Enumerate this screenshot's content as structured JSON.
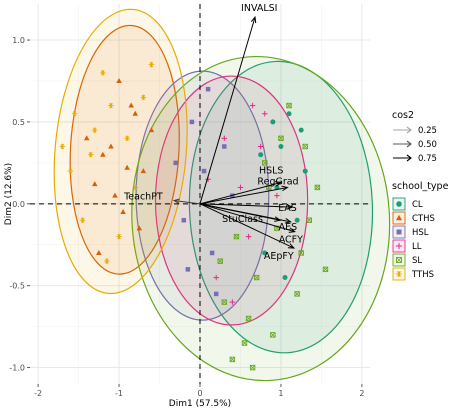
{
  "chart_data": {
    "type": "scatter",
    "subtype": "PCA biplot",
    "xlabel": "Dim1 (57.5%)",
    "ylabel": "Dim2 (12.6%)",
    "xlim": [
      -2.1,
      2.1
    ],
    "ylim": [
      -1.1,
      1.22
    ],
    "x_ticks": [
      -2,
      -1,
      0,
      1,
      2
    ],
    "y_ticks": [
      -1.0,
      -0.5,
      0.0,
      0.5,
      1.0
    ],
    "grid": true,
    "legend_position": "right",
    "cos2_legend": {
      "title": "cos2",
      "levels": [
        {
          "label": "0.25",
          "color": "#a6a6a6"
        },
        {
          "label": "0.50",
          "color": "#575757"
        },
        {
          "label": "0.75",
          "color": "#000000"
        }
      ]
    },
    "school_type_legend": {
      "title": "school_type",
      "items": [
        {
          "label": "CL",
          "color": "#1b9e77",
          "marker": "circle"
        },
        {
          "label": "CTHS",
          "color": "#d95f02",
          "marker": "triangle"
        },
        {
          "label": "HSL",
          "color": "#7570b3",
          "marker": "square"
        },
        {
          "label": "LL",
          "color": "#e7298a",
          "marker": "plus"
        },
        {
          "label": "SL",
          "color": "#66a61e",
          "marker": "boxcross"
        },
        {
          "label": "TTHS",
          "color": "#e6ab02",
          "marker": "asterisk"
        }
      ]
    },
    "ellipses": [
      {
        "group": "CL",
        "color": "#1b9e77",
        "cx": 1.0,
        "cy": -0.02,
        "rx": 1.13,
        "ry": 0.89,
        "angle": -2
      },
      {
        "group": "CTHS",
        "color": "#d95f02",
        "cx": -0.93,
        "cy": 0.33,
        "rx": 0.67,
        "ry": 0.76,
        "angle": 3
      },
      {
        "group": "HSL",
        "color": "#7570b3",
        "cx": 0.03,
        "cy": 0.05,
        "rx": 0.82,
        "ry": 0.76,
        "angle": 0
      },
      {
        "group": "LL",
        "color": "#e7298a",
        "cx": 0.39,
        "cy": 0.02,
        "rx": 0.94,
        "ry": 0.76,
        "angle": 0
      },
      {
        "group": "SL",
        "color": "#66a61e",
        "cx": 0.75,
        "cy": -0.09,
        "rx": 1.59,
        "ry": 0.99,
        "angle": -4
      },
      {
        "group": "TTHS",
        "color": "#e6ab02",
        "cx": -0.98,
        "cy": 0.32,
        "rx": 0.81,
        "ry": 0.87,
        "angle": 5
      }
    ],
    "variables": [
      {
        "name": "INVALSI",
        "x": 0.68,
        "y": 1.14,
        "cos2": 0.75
      },
      {
        "name": "HSLS",
        "x": 1.0,
        "y": 0.13,
        "cos2": 0.75
      },
      {
        "name": "RegGrad",
        "x": 1.08,
        "y": 0.1,
        "cos2": 0.75
      },
      {
        "name": "EAS",
        "x": 1.14,
        "y": -0.02,
        "cos2": 0.75
      },
      {
        "name": "StuClass",
        "x": 0.99,
        "y": -0.1,
        "cos2": 0.75
      },
      {
        "name": "AES",
        "x": 1.12,
        "y": -0.11,
        "cos2": 0.75
      },
      {
        "name": "ACFY",
        "x": 1.17,
        "y": -0.17,
        "cos2": 0.75
      },
      {
        "name": "AEpFY",
        "x": 1.16,
        "y": -0.27,
        "cos2": 0.75
      },
      {
        "name": "TeachPT",
        "x": -0.32,
        "y": 0.02,
        "cos2": 0.5
      }
    ],
    "points": {
      "CL": [
        [
          1.1,
          0.55
        ],
        [
          1.0,
          0.35
        ],
        [
          0.95,
          0.1
        ],
        [
          1.2,
          -0.1
        ],
        [
          0.8,
          -0.3
        ],
        [
          1.3,
          0.2
        ],
        [
          0.9,
          0.5
        ],
        [
          1.05,
          -0.45
        ],
        [
          0.75,
          0.3
        ],
        [
          1.25,
          0.45
        ]
      ],
      "CTHS": [
        [
          -0.9,
          0.22
        ],
        [
          -1.1,
          0.35
        ],
        [
          -1.3,
          0.12
        ],
        [
          -0.8,
          0.55
        ],
        [
          -0.95,
          -0.05
        ],
        [
          -1.2,
          0.3
        ],
        [
          -0.7,
          0.2
        ],
        [
          -1.05,
          0.05
        ],
        [
          -0.85,
          0.6
        ],
        [
          -1.4,
          0.4
        ],
        [
          -0.6,
          0.45
        ],
        [
          -1.25,
          -0.3
        ],
        [
          -0.75,
          -0.15
        ],
        [
          -1.0,
          0.75
        ]
      ],
      "HSL": [
        [
          0.05,
          0.2
        ],
        [
          -0.2,
          -0.1
        ],
        [
          0.3,
          0.35
        ],
        [
          0.15,
          -0.3
        ],
        [
          -0.1,
          0.5
        ],
        [
          0.4,
          0.05
        ],
        [
          -0.3,
          0.25
        ],
        [
          0.2,
          -0.55
        ],
        [
          0.1,
          0.7
        ],
        [
          -0.15,
          -0.4
        ]
      ],
      "LL": [
        [
          0.8,
          0.55
        ],
        [
          0.3,
          0.4
        ],
        [
          0.6,
          -0.2
        ],
        [
          0.5,
          0.1
        ],
        [
          0.95,
          0.05
        ],
        [
          0.2,
          -0.45
        ],
        [
          0.75,
          0.35
        ],
        [
          0.4,
          -0.6
        ],
        [
          0.65,
          0.6
        ],
        [
          0.1,
          0.15
        ]
      ],
      "SL": [
        [
          0.9,
          -0.8
        ],
        [
          1.2,
          -0.55
        ],
        [
          0.6,
          -0.7
        ],
        [
          1.3,
          0.35
        ],
        [
          0.4,
          -0.95
        ],
        [
          1.55,
          -0.4
        ],
        [
          0.7,
          -0.45
        ],
        [
          1.1,
          0.6
        ],
        [
          0.95,
          -0.15
        ],
        [
          0.3,
          -0.6
        ],
        [
          1.45,
          0.1
        ],
        [
          0.8,
          0.25
        ],
        [
          0.55,
          -0.85
        ],
        [
          1.25,
          -0.3
        ],
        [
          0.25,
          -0.35
        ],
        [
          1.0,
          0.4
        ],
        [
          0.45,
          -0.2
        ],
        [
          1.35,
          -0.1
        ],
        [
          0.65,
          -1.0
        ],
        [
          0.85,
          0.1
        ]
      ],
      "TTHS": [
        [
          -1.3,
          0.45
        ],
        [
          -1.1,
          0.6
        ],
        [
          -1.6,
          0.2
        ],
        [
          -0.9,
          0.4
        ],
        [
          -1.45,
          -0.1
        ],
        [
          -1.2,
          0.8
        ],
        [
          -0.7,
          0.65
        ],
        [
          -1.55,
          0.55
        ],
        [
          -1.0,
          -0.2
        ],
        [
          -1.35,
          0.3
        ],
        [
          -0.8,
          0.1
        ],
        [
          -1.7,
          0.35
        ],
        [
          -1.15,
          -0.35
        ],
        [
          -0.6,
          0.85
        ]
      ]
    }
  }
}
